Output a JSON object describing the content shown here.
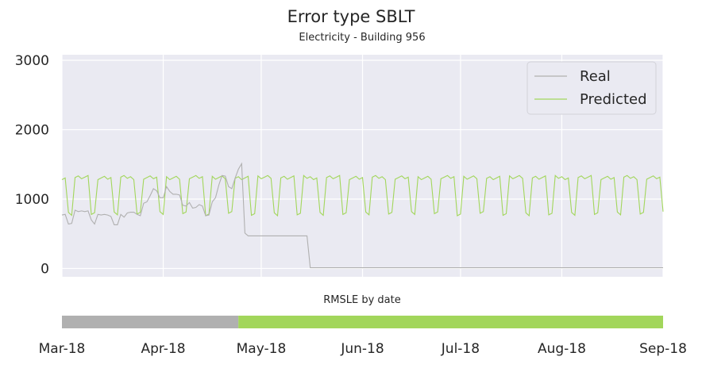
{
  "chart_data": {
    "type": "line",
    "title": "Error type SBLT",
    "subtitle": "Electricity - Building 956",
    "ylim": [
      -120,
      3080
    ],
    "y_ticks": [
      0,
      1000,
      2000,
      3000
    ],
    "y_tick_labels": [
      "0",
      "1000",
      "2000",
      "3000"
    ],
    "x_range": [
      "2018-03-01",
      "2018-09-01"
    ],
    "x_ticks": [
      "2018-03-01",
      "2018-04-01",
      "2018-05-01",
      "2018-06-01",
      "2018-07-01",
      "2018-08-01",
      "2018-09-01"
    ],
    "x_tick_labels": [
      "Mar-18",
      "Apr-18",
      "May-18",
      "Jun-18",
      "Jul-18",
      "Aug-18",
      "Sep-18"
    ],
    "grid": true,
    "legend_position": "top-right",
    "series": [
      {
        "name": "Real",
        "color": "#b0b0b0",
        "x": [
          "2018-03-01",
          "2018-03-02",
          "2018-03-03",
          "2018-03-04",
          "2018-03-05",
          "2018-03-06",
          "2018-03-07",
          "2018-03-08",
          "2018-03-09",
          "2018-03-10",
          "2018-03-11",
          "2018-03-12",
          "2018-03-13",
          "2018-03-14",
          "2018-03-15",
          "2018-03-16",
          "2018-03-17",
          "2018-03-18",
          "2018-03-19",
          "2018-03-20",
          "2018-03-21",
          "2018-03-22",
          "2018-03-23",
          "2018-03-24",
          "2018-03-25",
          "2018-03-26",
          "2018-03-27",
          "2018-03-28",
          "2018-03-29",
          "2018-03-30",
          "2018-03-31",
          "2018-04-01",
          "2018-04-02",
          "2018-04-03",
          "2018-04-04",
          "2018-04-05",
          "2018-04-06",
          "2018-04-07",
          "2018-04-08",
          "2018-04-09",
          "2018-04-10",
          "2018-04-11",
          "2018-04-12",
          "2018-04-13",
          "2018-04-14",
          "2018-04-15",
          "2018-04-16",
          "2018-04-17",
          "2018-04-18",
          "2018-04-19",
          "2018-04-20",
          "2018-04-21",
          "2018-04-22",
          "2018-04-23",
          "2018-04-24",
          "2018-04-25",
          "2018-04-26",
          "2018-04-27",
          "2018-04-28",
          "2018-04-29",
          "2018-04-30",
          "2018-05-01",
          "2018-05-02",
          "2018-05-15",
          "2018-05-16",
          "2018-09-01"
        ],
        "values": [
          770,
          780,
          640,
          650,
          840,
          820,
          830,
          820,
          830,
          700,
          640,
          780,
          770,
          780,
          770,
          750,
          630,
          630,
          780,
          740,
          800,
          810,
          810,
          780,
          760,
          940,
          960,
          1050,
          1150,
          1120,
          1020,
          1020,
          1180,
          1110,
          1070,
          1070,
          1060,
          910,
          900,
          950,
          870,
          880,
          920,
          900,
          760,
          770,
          960,
          1020,
          1200,
          1340,
          1330,
          1180,
          1150,
          1300,
          1430,
          1510,
          510,
          470,
          470,
          470,
          470,
          470,
          470,
          470,
          10,
          10
        ]
      },
      {
        "name": "Predicted",
        "color": "#a2d65b",
        "weekday_high": 1290,
        "weekend_low": 790
      }
    ]
  },
  "strip": {
    "label": "RMSLE by date",
    "segments": [
      {
        "from": "2018-03-01",
        "to": "2018-04-24",
        "color": "#b0b0b0"
      },
      {
        "from": "2018-04-24",
        "to": "2018-09-01",
        "color": "#a2d65b"
      }
    ]
  }
}
